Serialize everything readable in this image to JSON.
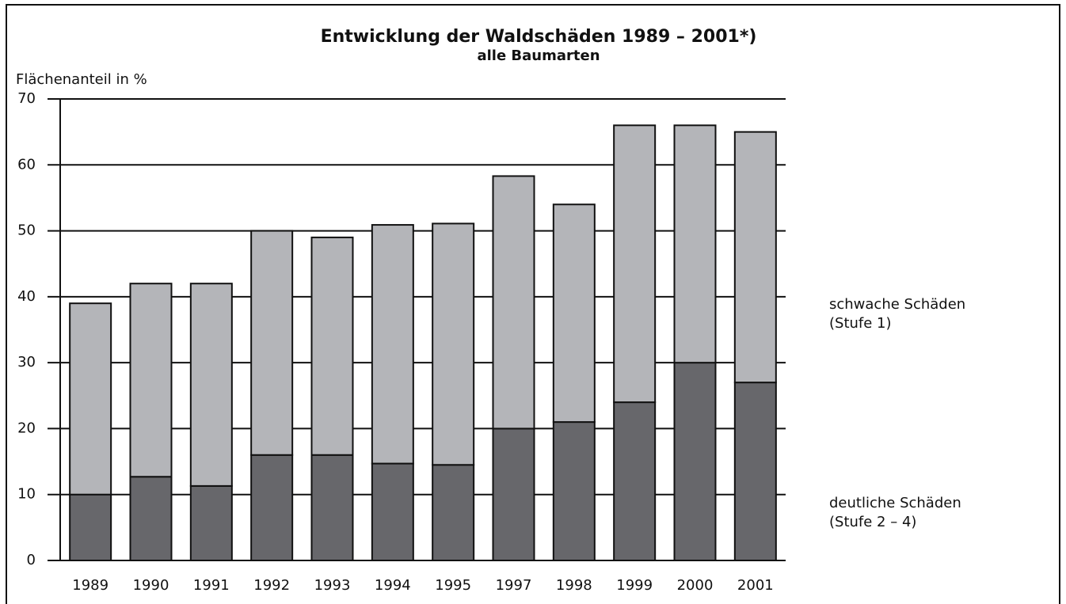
{
  "chart_data": {
    "type": "stacked_bar",
    "title": "Entwicklung der Waldschäden 1989 – 2001*)",
    "subtitle": "alle Baumarten",
    "y_label": "Flächenanteil in %",
    "categories": [
      "1989",
      "1990",
      "1991",
      "1992",
      "1993",
      "1994",
      "1995",
      "1997",
      "1998",
      "1999",
      "2000",
      "2001"
    ],
    "series": [
      {
        "name": "deutliche Schäden",
        "level": "(Stufe 2 – 4)",
        "color": "#67676b",
        "values": [
          10,
          12.7,
          11.3,
          16,
          16,
          14.7,
          14.5,
          20,
          21,
          24,
          30,
          27
        ]
      },
      {
        "name": "schwache Schäden",
        "level": "(Stufe 1)",
        "color": "#b4b5b9",
        "values": [
          29,
          29.3,
          30.7,
          34,
          33,
          36.2,
          36.6,
          38.3,
          33,
          42,
          36,
          38
        ]
      }
    ],
    "ylim": [
      0,
      70
    ],
    "yticks": [
      0,
      10,
      20,
      30,
      40,
      50,
      60,
      70
    ],
    "grid": true
  }
}
